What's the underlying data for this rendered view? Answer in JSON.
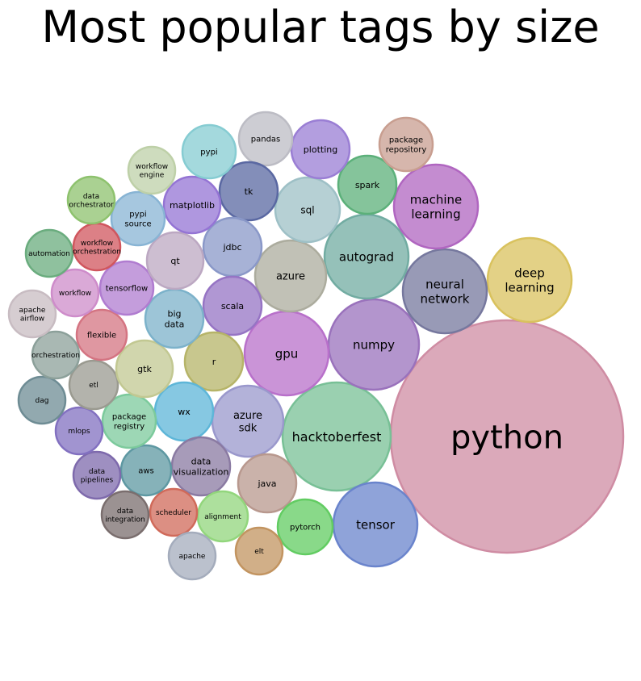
{
  "chart_data": {
    "type": "bubble",
    "title": "Most popular tags by size",
    "bubbles": [
      {
        "label": "python",
        "color": "#cf8ca3"
      },
      {
        "label": "hacktoberfest",
        "color": "#78c096"
      },
      {
        "label": "tensor",
        "color": "#6a84cc"
      },
      {
        "label": "numpy",
        "color": "#9a72bc"
      },
      {
        "label": "deep\nlearning",
        "color": "#d9c25e"
      },
      {
        "label": "neural\nnetwork",
        "color": "#76789e"
      },
      {
        "label": "autograd",
        "color": "#72aca2"
      },
      {
        "label": "machine\nlearning",
        "color": "#b066c0"
      },
      {
        "label": "gpu",
        "color": "#b870ca"
      },
      {
        "label": "azure\nsdk",
        "color": "#9a98cc"
      },
      {
        "label": "azure",
        "color": "#acac9e"
      },
      {
        "label": "sql",
        "color": "#9ec0c6"
      },
      {
        "label": "spark",
        "color": "#5cb07a"
      },
      {
        "label": "package\nrepository",
        "color": "#c89e90"
      },
      {
        "label": "plotting",
        "color": "#9a7ed4"
      },
      {
        "label": "pandas",
        "color": "#bcbcc4"
      },
      {
        "label": "tk",
        "color": "#5a68a2"
      },
      {
        "label": "jdbc",
        "color": "#8a98c8"
      },
      {
        "label": "scala",
        "color": "#9674c4"
      },
      {
        "label": "r",
        "color": "#b6b468"
      },
      {
        "label": "wx",
        "color": "#5eb6d8"
      },
      {
        "label": "data\nvisualization",
        "color": "#8a7aa2"
      },
      {
        "label": "java",
        "color": "#b8988e"
      },
      {
        "label": "pytorch",
        "color": "#62cc62"
      },
      {
        "label": "elt",
        "color": "#c29460"
      },
      {
        "label": "alignment",
        "color": "#92d67c"
      },
      {
        "label": "scheduler",
        "color": "#d06a5a"
      },
      {
        "label": "apache",
        "color": "#a4acbc"
      },
      {
        "label": "aws",
        "color": "#5e98a2"
      },
      {
        "label": "data\nintegration",
        "color": "#7a6e6e"
      },
      {
        "label": "data\npipelines",
        "color": "#7e6aac"
      },
      {
        "label": "package\nregistry",
        "color": "#7cca9c"
      },
      {
        "label": "mlops",
        "color": "#8270c0"
      },
      {
        "label": "dag",
        "color": "#6e8c94"
      },
      {
        "label": "etl",
        "color": "#9a9a90"
      },
      {
        "label": "gtk",
        "color": "#c2c892"
      },
      {
        "label": "big\ndata",
        "color": "#7cb2ca"
      },
      {
        "label": "flexible",
        "color": "#d47482"
      },
      {
        "label": "orchestration",
        "color": "#8ca09a"
      },
      {
        "label": "apache\nairflow",
        "color": "#c8bcc2"
      },
      {
        "label": "workflow",
        "color": "#ce8cca"
      },
      {
        "label": "tensorflow",
        "color": "#b07cd0"
      },
      {
        "label": "qt",
        "color": "#bca8c2"
      },
      {
        "label": "matplotlib",
        "color": "#9474d4"
      },
      {
        "label": "pypi\nsource",
        "color": "#88b4d4"
      },
      {
        "label": "automation",
        "color": "#6aac7e"
      },
      {
        "label": "workflow\norchestration",
        "color": "#d0565e"
      },
      {
        "label": "data\norchestrator",
        "color": "#8ec26e"
      },
      {
        "label": "workflow\nengine",
        "color": "#bed0a8"
      },
      {
        "label": "pypi",
        "color": "#86ccd2"
      }
    ]
  }
}
